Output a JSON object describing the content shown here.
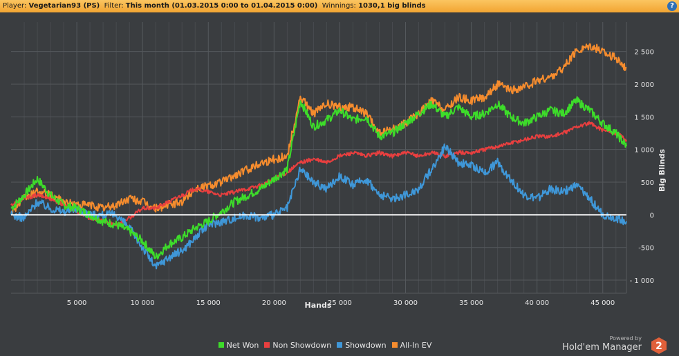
{
  "header": {
    "player_label": "Player:",
    "player_value": "Vegetarian93 (PS)",
    "filter_label": "Filter:",
    "filter_value": "This month (01.03.2015 0:00 to 01.04.2015 0:00)",
    "winnings_label": "Winnings:",
    "winnings_value": "1030,1 big blinds",
    "help_glyph": "?"
  },
  "brand": {
    "powered": "Powered by",
    "name": "Hold'em Manager",
    "badge": "2"
  },
  "colors": {
    "net_won": "#3ddc2a",
    "non_showdown": "#e83f3f",
    "showdown": "#3f97d8",
    "all_in_ev": "#f58c2e",
    "zero_line": "#ffffff",
    "grid": "#55595d",
    "plot_bg": "#3a3d40"
  },
  "chart_data": {
    "type": "line",
    "xlabel": "Hands",
    "ylabel": "Big Blinds",
    "xlim": [
      0,
      46800
    ],
    "ylim": [
      -1200,
      2950
    ],
    "xticks": [
      5000,
      10000,
      15000,
      20000,
      25000,
      30000,
      35000,
      40000,
      45000
    ],
    "xtick_labels": [
      "5 000",
      "10 000",
      "15 000",
      "20 000",
      "25 000",
      "30 000",
      "35 000",
      "40 000",
      "45 000"
    ],
    "yticks": [
      -1000,
      -500,
      0,
      500,
      1000,
      1500,
      2000,
      2500
    ],
    "ytick_labels": [
      "- 1 000",
      "-500",
      "0",
      "500",
      "1 000",
      "1 500",
      "2 000",
      "2 500"
    ],
    "grid": true,
    "legend_position": "bottom",
    "x": [
      0,
      1000,
      2000,
      3000,
      4000,
      5000,
      6000,
      7000,
      8000,
      9000,
      10000,
      11000,
      12000,
      13000,
      14000,
      15000,
      16000,
      17000,
      18000,
      19000,
      20000,
      21000,
      22000,
      23000,
      24000,
      25000,
      26000,
      27000,
      28000,
      29000,
      30000,
      31000,
      32000,
      33000,
      34000,
      35000,
      36000,
      37000,
      38000,
      39000,
      40000,
      41000,
      42000,
      43000,
      44000,
      45000,
      46000,
      46800
    ],
    "series": [
      {
        "name": "Net Won",
        "color": "#3ddc2a",
        "values": [
          100,
          300,
          550,
          300,
          150,
          100,
          0,
          -100,
          -150,
          -250,
          -400,
          -650,
          -450,
          -350,
          -200,
          -100,
          50,
          200,
          300,
          400,
          550,
          700,
          1750,
          1350,
          1450,
          1600,
          1450,
          1500,
          1200,
          1250,
          1400,
          1550,
          1700,
          1500,
          1650,
          1500,
          1550,
          1700,
          1500,
          1400,
          1500,
          1600,
          1550,
          1750,
          1600,
          1400,
          1250,
          1050
        ]
      },
      {
        "name": "Non Showdown",
        "color": "#e83f3f",
        "values": [
          150,
          250,
          300,
          250,
          150,
          50,
          -50,
          -100,
          -150,
          -50,
          100,
          100,
          200,
          300,
          400,
          350,
          300,
          350,
          400,
          450,
          550,
          650,
          800,
          850,
          800,
          900,
          950,
          900,
          950,
          900,
          950,
          900,
          950,
          900,
          950,
          950,
          1000,
          1050,
          1100,
          1150,
          1200,
          1200,
          1250,
          1350,
          1400,
          1300,
          1250,
          1150
        ]
      },
      {
        "name": "Showdown",
        "color": "#3f97d8",
        "values": [
          0,
          -50,
          200,
          100,
          50,
          100,
          0,
          0,
          0,
          -200,
          -500,
          -800,
          -650,
          -550,
          -350,
          -150,
          -100,
          -50,
          0,
          -50,
          0,
          100,
          700,
          500,
          400,
          600,
          450,
          550,
          300,
          250,
          300,
          400,
          700,
          1050,
          800,
          750,
          650,
          800,
          550,
          300,
          250,
          400,
          350,
          450,
          250,
          0,
          -50,
          -100
        ]
      },
      {
        "name": "All-In EV",
        "color": "#f58c2e",
        "values": [
          50,
          250,
          350,
          300,
          200,
          150,
          150,
          100,
          150,
          250,
          200,
          100,
          150,
          200,
          400,
          450,
          500,
          600,
          700,
          800,
          850,
          900,
          1800,
          1550,
          1700,
          1650,
          1650,
          1550,
          1250,
          1300,
          1400,
          1550,
          1750,
          1600,
          1800,
          1750,
          1800,
          2000,
          1900,
          1950,
          2050,
          2100,
          2250,
          2500,
          2600,
          2500,
          2400,
          2250
        ]
      }
    ]
  }
}
